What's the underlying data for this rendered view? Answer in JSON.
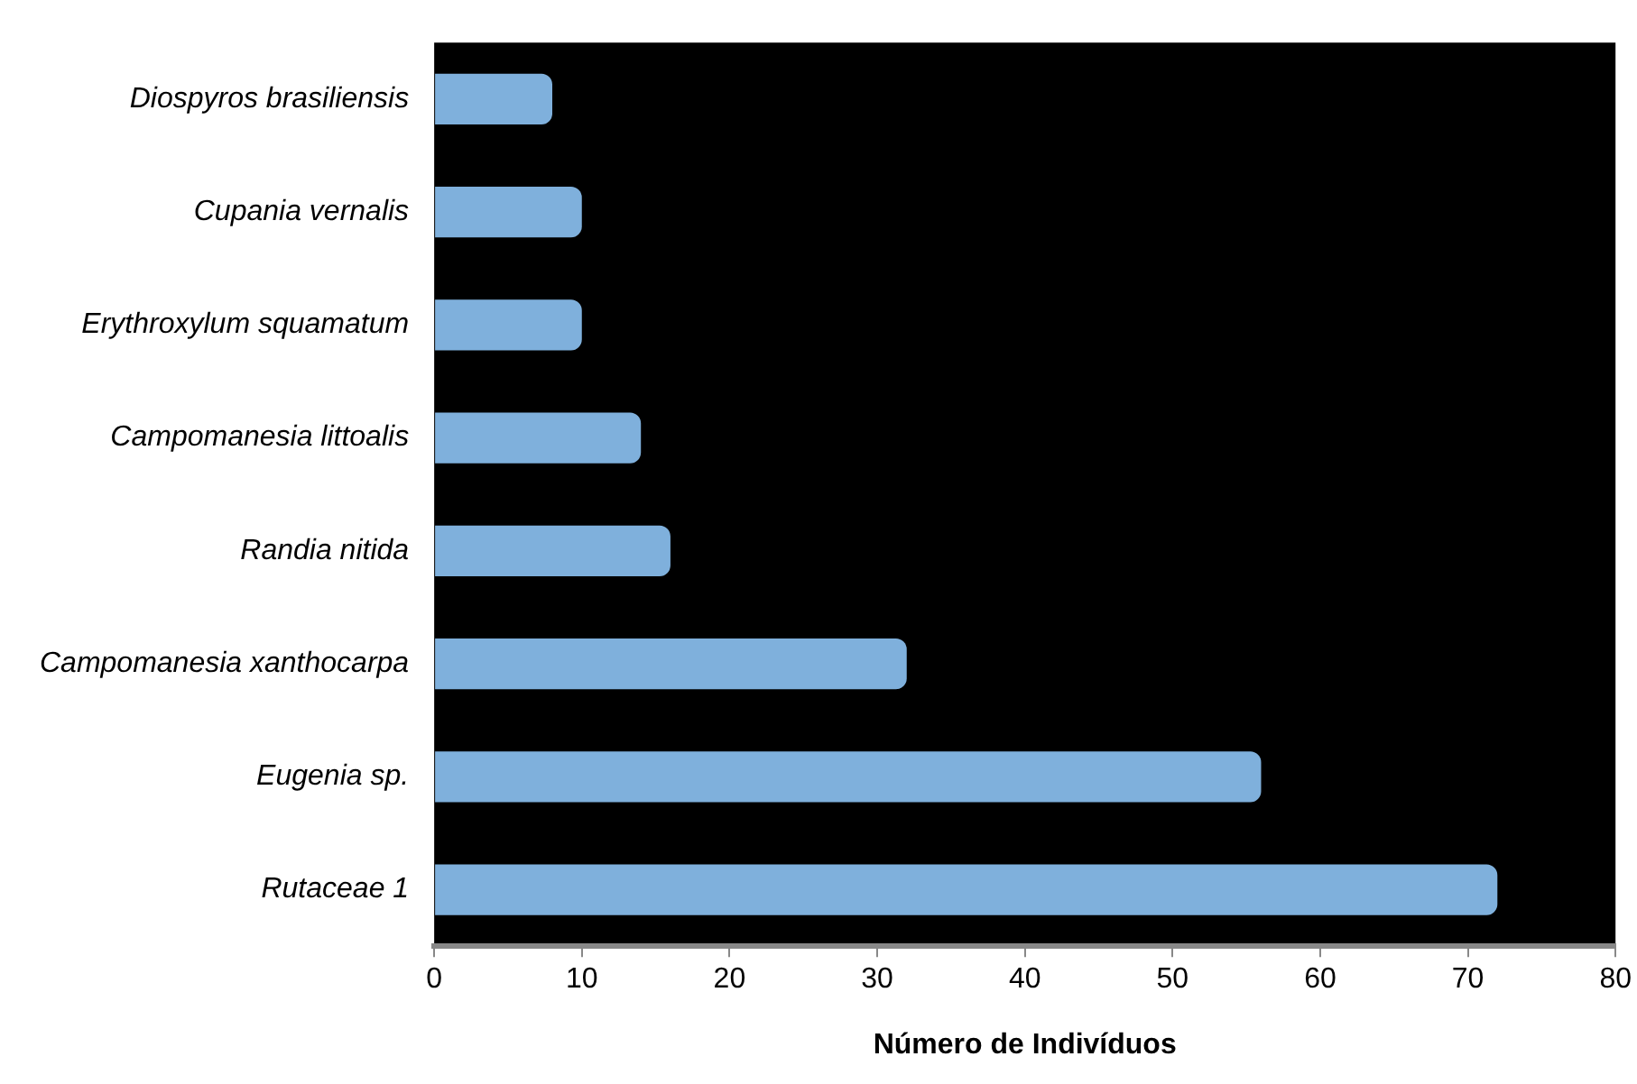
{
  "chart_data": {
    "type": "bar",
    "orientation": "horizontal",
    "xlabel": "Número de Indivíduos",
    "categories": [
      "Diospyros brasiliensis",
      "Cupania vernalis",
      "Erythroxylum squamatum",
      "Campomanesia littoalis",
      "Randia nitida",
      "Campomanesia xanthocarpa",
      "Eugenia sp.",
      "Rutaceae 1"
    ],
    "values": [
      8,
      10,
      10,
      14,
      16,
      32,
      56,
      72
    ],
    "color": "#7fb0dc",
    "xlim": [
      0,
      80
    ],
    "xticks": [
      0,
      10,
      20,
      30,
      40,
      50,
      60,
      70,
      80
    ],
    "grid": false,
    "legend": false
  }
}
